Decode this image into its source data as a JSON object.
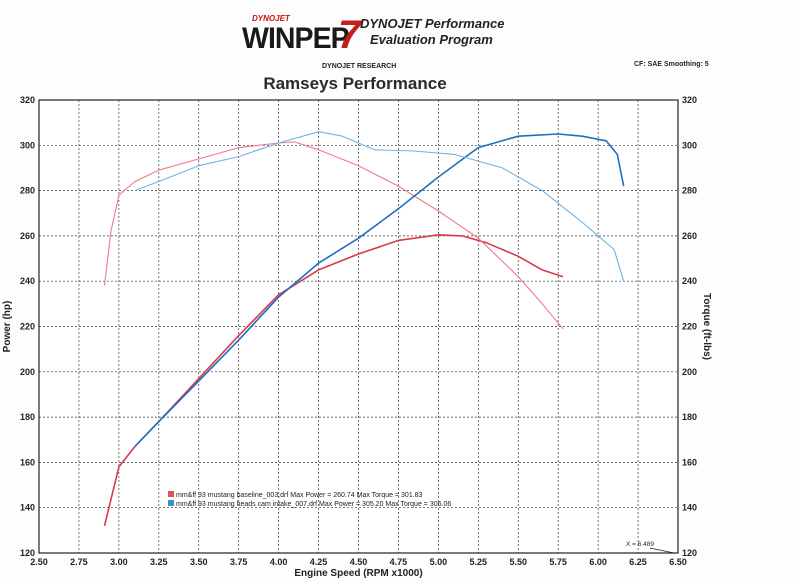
{
  "header": {
    "logo_small": "DYNOJET",
    "logo_text": "WINPEP",
    "logo_mark": "7",
    "program_line1": "DYNOJET Performance",
    "program_line2": "Evaluation Program",
    "research": "DYNOJET RESEARCH",
    "cf_smoothing": "CF: SAE  Smoothing: 5"
  },
  "chart_data": {
    "type": "line",
    "title": "Ramseys Performance",
    "xlabel": "Engine Speed (RPM x1000)",
    "ylabel_left": "Power (hp)",
    "ylabel_right": "Torque (ft-lbs)",
    "xlim": [
      2.5,
      6.5
    ],
    "ylim": [
      120,
      320
    ],
    "x_ticks": [
      "2.50",
      "2.75",
      "3.00",
      "3.25",
      "3.50",
      "3.75",
      "4.00",
      "4.25",
      "4.50",
      "4.75",
      "5.00",
      "5.25",
      "5.50",
      "5.75",
      "6.00",
      "6.25",
      "6.50"
    ],
    "y_ticks": [
      "120",
      "140",
      "160",
      "180",
      "200",
      "220",
      "240",
      "260",
      "280",
      "300",
      "320"
    ],
    "grid": true,
    "x_marker_label": "X = 6.489",
    "legend": [
      {
        "text": "mm&ff 93 mustang baseline_003.drf Max Power = 260.74     Max Torque = 301.83",
        "color": "#e05060"
      },
      {
        "text": "mm&ff 93 mustang heads cam intake_007.drf Max Power = 305.20     Max Torque = 306.06",
        "color": "#3a8fd0"
      }
    ],
    "series": [
      {
        "name": "mm&ff 93 mustang baseline_003.drf",
        "kind": "power",
        "color": "#d83a4a",
        "x": [
          2.91,
          3.0,
          3.1,
          3.25,
          3.5,
          3.75,
          4.0,
          4.25,
          4.5,
          4.75,
          5.0,
          5.15,
          5.3,
          5.5,
          5.65,
          5.78
        ],
        "y": [
          132,
          158,
          167,
          178,
          197,
          216,
          234,
          245,
          252,
          258,
          260.5,
          260,
          257,
          251,
          245,
          242
        ]
      },
      {
        "name": "mm&ff 93 mustang baseline_003.drf",
        "kind": "torque",
        "color": "#f07a88",
        "x": [
          2.91,
          2.95,
          3.0,
          3.1,
          3.25,
          3.5,
          3.75,
          4.0,
          4.1,
          4.25,
          4.5,
          4.75,
          5.0,
          5.25,
          5.5,
          5.65,
          5.78
        ],
        "y": [
          238,
          262,
          278,
          284,
          289,
          294,
          299,
          301,
          301.5,
          298,
          291,
          282,
          271,
          259,
          242,
          230,
          219
        ]
      },
      {
        "name": "mm&ff 93 mustang heads cam intake_007.drf",
        "kind": "power",
        "color": "#1f6fc0",
        "x": [
          3.1,
          3.25,
          3.5,
          3.75,
          4.0,
          4.25,
          4.5,
          4.75,
          5.0,
          5.25,
          5.5,
          5.75,
          5.9,
          6.05,
          6.12,
          6.16
        ],
        "y": [
          167,
          178,
          196,
          214,
          233,
          248,
          259,
          272,
          286,
          299,
          304,
          305,
          304,
          302,
          296,
          282
        ]
      },
      {
        "name": "mm&ff 93 mustang heads cam intake_007.drf",
        "kind": "torque",
        "color": "#6fb4e6",
        "x": [
          3.1,
          3.25,
          3.5,
          3.75,
          4.0,
          4.25,
          4.4,
          4.6,
          4.85,
          5.1,
          5.4,
          5.65,
          5.9,
          6.1,
          6.16
        ],
        "y": [
          280,
          284,
          291,
          295,
          301,
          306,
          304,
          298,
          297.5,
          296,
          290,
          280,
          266,
          254,
          240
        ]
      }
    ]
  }
}
